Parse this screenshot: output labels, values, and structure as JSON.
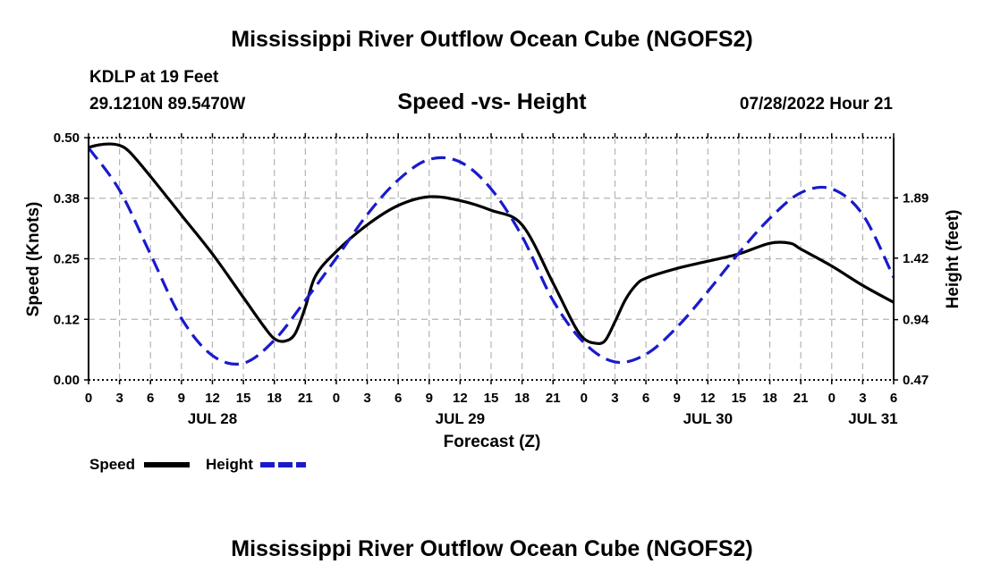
{
  "header": {
    "title": "Mississippi River Outflow Ocean Cube (NGOFS2)",
    "station": "KDLP at 19 Feet",
    "coords": "29.1210N  89.5470W",
    "subtitle": "Speed -vs- Height",
    "timestamp": "07/28/2022 Hour 21"
  },
  "footer": {
    "title": "Mississippi River Outflow Ocean Cube (NGOFS2)"
  },
  "chart_data": {
    "type": "line",
    "title": "Speed -vs- Height",
    "xlabel": "Forecast (Z)",
    "ylabel": "Speed (Knots)",
    "y2label": "Height (feet)",
    "x_unit": "hours from JUL 28 00Z",
    "xlim": [
      0,
      78
    ],
    "ylim": [
      0,
      0.5
    ],
    "y2lim": [
      0.47,
      2.36
    ],
    "x_ticks": [
      0,
      3,
      6,
      9,
      12,
      15,
      18,
      21,
      24,
      27,
      30,
      33,
      36,
      39,
      42,
      45,
      48,
      51,
      54,
      57,
      60,
      63,
      66,
      69,
      72,
      75,
      78
    ],
    "x_tick_labels": [
      "0",
      "3",
      "6",
      "9",
      "12",
      "15",
      "18",
      "21",
      "0",
      "3",
      "6",
      "9",
      "12",
      "15",
      "18",
      "21",
      "0",
      "3",
      "6",
      "9",
      "12",
      "15",
      "18",
      "21",
      "0",
      "3",
      "6"
    ],
    "y_ticks": [
      0,
      0.125,
      0.25,
      0.375,
      0.5
    ],
    "y_tick_labels": [
      "0.00",
      "0.12",
      "0.25",
      "0.38",
      "0.50"
    ],
    "y2_ticks": [
      0.47,
      0.94,
      1.42,
      1.89
    ],
    "y2_tick_labels": [
      "0.47",
      "0.94",
      "1.42",
      "1.89"
    ],
    "date_labels": [
      {
        "x": 12,
        "text": "JUL 28"
      },
      {
        "x": 36,
        "text": "JUL 29"
      },
      {
        "x": 60,
        "text": "JUL 30"
      },
      {
        "x": 76,
        "text": "JUL 31"
      }
    ],
    "grid": true,
    "legend_position": "bottom-left",
    "series": [
      {
        "name": "Speed",
        "axis": "left",
        "color": "#000000",
        "style": "solid",
        "x": [
          0,
          1,
          2,
          3,
          4,
          6,
          9,
          12,
          15,
          17,
          18,
          19,
          20,
          21,
          22,
          24,
          27,
          30,
          33,
          36,
          39,
          42,
          45,
          47,
          48,
          49,
          50,
          51,
          52,
          53,
          54,
          57,
          60,
          63,
          66,
          68,
          69,
          72,
          75,
          78
        ],
        "y": [
          0.48,
          0.485,
          0.487,
          0.484,
          0.47,
          0.42,
          0.34,
          0.26,
          0.17,
          0.11,
          0.085,
          0.08,
          0.095,
          0.15,
          0.215,
          0.265,
          0.32,
          0.36,
          0.378,
          0.37,
          0.35,
          0.32,
          0.2,
          0.115,
          0.085,
          0.076,
          0.08,
          0.12,
          0.165,
          0.195,
          0.21,
          0.23,
          0.245,
          0.26,
          0.282,
          0.282,
          0.27,
          0.235,
          0.195,
          0.16
        ]
      },
      {
        "name": "Height",
        "axis": "right",
        "color": "#1a1acc",
        "style": "dashed",
        "x": [
          0,
          3,
          6,
          9,
          12,
          15,
          18,
          21,
          24,
          27,
          30,
          33,
          36,
          39,
          42,
          45,
          48,
          51,
          54,
          57,
          60,
          63,
          66,
          69,
          72,
          75,
          78
        ],
        "y": [
          2.28,
          1.95,
          1.45,
          0.95,
          0.66,
          0.6,
          0.78,
          1.09,
          1.42,
          1.76,
          2.03,
          2.19,
          2.17,
          1.96,
          1.59,
          1.09,
          0.76,
          0.61,
          0.67,
          0.88,
          1.16,
          1.46,
          1.73,
          1.93,
          1.96,
          1.76,
          1.27
        ]
      }
    ]
  }
}
